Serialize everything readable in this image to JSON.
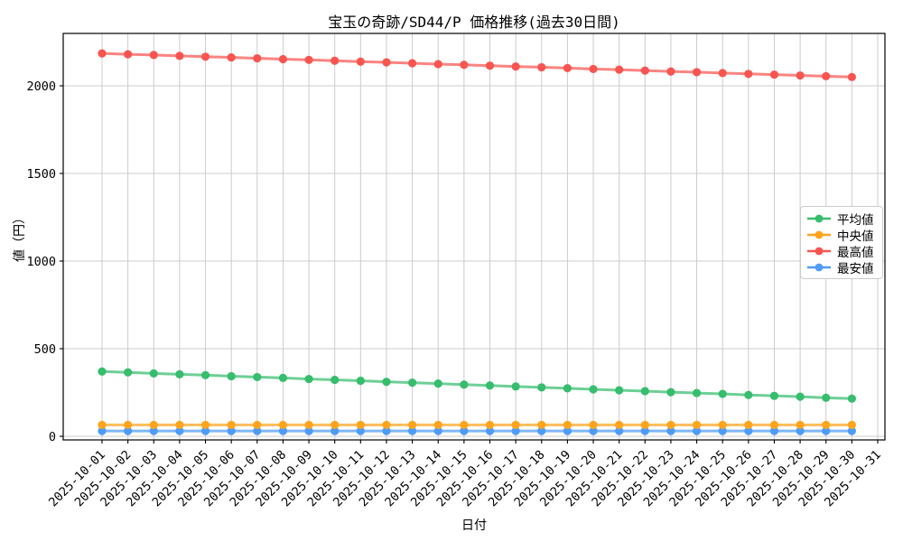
{
  "chart_data": {
    "type": "line",
    "title": "宝玉の奇跡/SD44/P 価格推移(過去30日間)",
    "xlabel": "日付",
    "ylabel": "値（円）",
    "x_tick_labels": [
      "2025-10-01",
      "2025-10-02",
      "2025-10-03",
      "2025-10-04",
      "2025-10-05",
      "2025-10-06",
      "2025-10-07",
      "2025-10-08",
      "2025-10-09",
      "2025-10-10",
      "2025-10-11",
      "2025-10-12",
      "2025-10-13",
      "2025-10-14",
      "2025-10-15",
      "2025-10-16",
      "2025-10-17",
      "2025-10-18",
      "2025-10-19",
      "2025-10-20",
      "2025-10-21",
      "2025-10-22",
      "2025-10-23",
      "2025-10-24",
      "2025-10-25",
      "2025-10-26",
      "2025-10-27",
      "2025-10-28",
      "2025-10-29",
      "2025-10-30",
      "2025-10-31"
    ],
    "x": [
      "2025-10-01",
      "2025-10-02",
      "2025-10-03",
      "2025-10-04",
      "2025-10-05",
      "2025-10-06",
      "2025-10-07",
      "2025-10-08",
      "2025-10-09",
      "2025-10-10",
      "2025-10-11",
      "2025-10-12",
      "2025-10-13",
      "2025-10-14",
      "2025-10-15",
      "2025-10-16",
      "2025-10-17",
      "2025-10-18",
      "2025-10-19",
      "2025-10-20",
      "2025-10-21",
      "2025-10-22",
      "2025-10-23",
      "2025-10-24",
      "2025-10-25",
      "2025-10-26",
      "2025-10-27",
      "2025-10-28",
      "2025-10-29",
      "2025-10-30"
    ],
    "series": [
      {
        "key": "average",
        "name": "平均値",
        "color": "#36bd6d",
        "values": [
          370,
          365,
          359,
          354,
          349,
          343,
          338,
          333,
          327,
          322,
          317,
          311,
          306,
          301,
          295,
          290,
          284,
          279,
          274,
          268,
          263,
          258,
          252,
          247,
          242,
          236,
          231,
          226,
          220,
          215
        ]
      },
      {
        "key": "median",
        "name": "中央値",
        "color": "#ffa41c",
        "values": [
          65,
          65,
          65,
          65,
          65,
          65,
          65,
          65,
          65,
          65,
          65,
          65,
          65,
          65,
          65,
          65,
          65,
          65,
          65,
          65,
          65,
          65,
          65,
          65,
          65,
          65,
          65,
          65,
          65,
          65
        ]
      },
      {
        "key": "highest",
        "name": "最高値",
        "color": "#f85550",
        "values": [
          2185,
          2180,
          2176,
          2171,
          2166,
          2162,
          2157,
          2152,
          2148,
          2143,
          2138,
          2134,
          2129,
          2124,
          2120,
          2115,
          2110,
          2106,
          2101,
          2096,
          2092,
          2087,
          2082,
          2078,
          2073,
          2068,
          2064,
          2059,
          2055,
          2050
        ]
      },
      {
        "key": "lowest",
        "name": "最安値",
        "color": "#4f9bf8",
        "values": [
          30,
          30,
          30,
          30,
          30,
          30,
          30,
          30,
          30,
          30,
          30,
          30,
          30,
          30,
          30,
          30,
          30,
          30,
          30,
          30,
          30,
          30,
          30,
          30,
          30,
          30,
          30,
          30,
          30,
          30
        ]
      }
    ],
    "yticks": [
      0,
      500,
      1000,
      1500,
      2000
    ],
    "ylim": [
      -25,
      2300
    ],
    "grid": true,
    "legend_position": "right-middle"
  },
  "colors": {
    "grid": "#cccccc",
    "axis": "#000000",
    "background": "#ffffff",
    "legend_border": "#cccccc"
  }
}
